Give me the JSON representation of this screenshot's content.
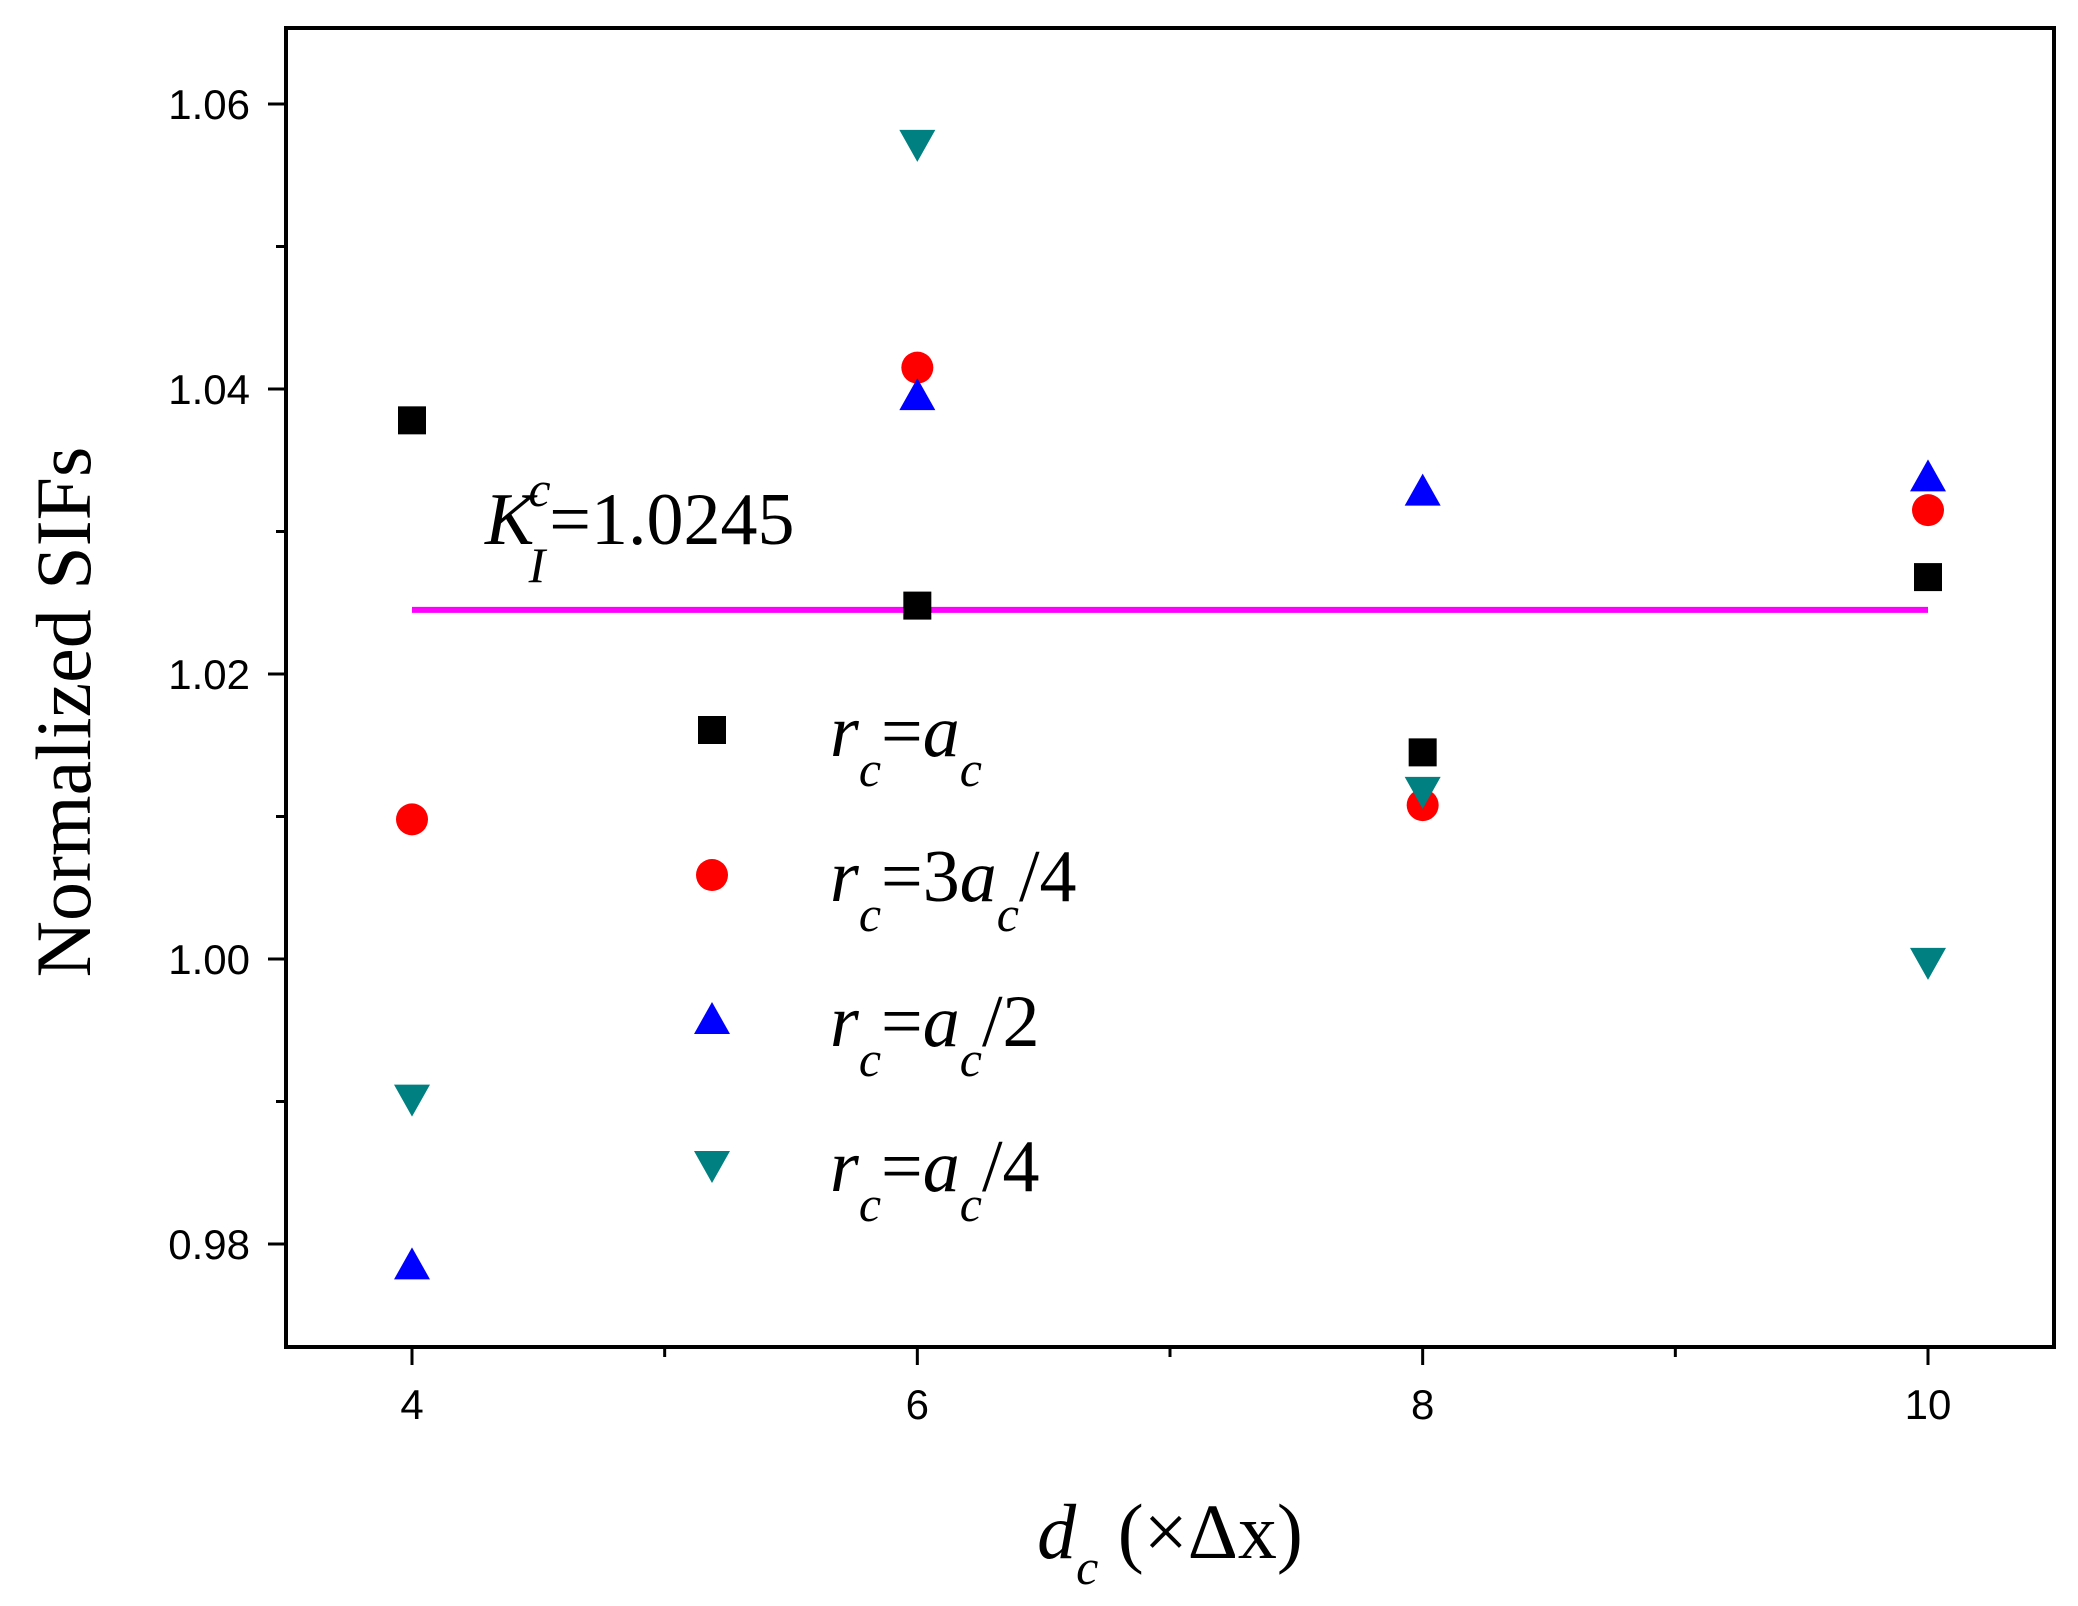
{
  "chart_data": {
    "type": "scatter",
    "xlabel": {
      "main": "d",
      "sub": "c",
      "rest": " (×Δx)"
    },
    "ylabel": "Normalized SIFs",
    "xlim": [
      3.5,
      11.5
    ],
    "ylim": [
      0.973,
      1.066
    ],
    "x_ticks": [
      4,
      6,
      8,
      10
    ],
    "x_tick_labels": [
      "4",
      "6",
      "8",
      "10"
    ],
    "x_minor_ticks": [
      5,
      7,
      9
    ],
    "y_ticks": [
      0.98,
      1.0,
      1.02,
      1.04,
      1.06
    ],
    "y_tick_labels": [
      "0.98",
      "1.00",
      "1.02",
      "1.04",
      "1.06"
    ],
    "y_minor_ticks": [
      0.99,
      1.01,
      1.03,
      1.05
    ],
    "grid": false,
    "legend_position": "center",
    "reference_line": {
      "label_main": "K",
      "label_sup": "c",
      "label_sub": "I",
      "label_value": "=1.0245",
      "y": 1.0245,
      "x_range": [
        4,
        10
      ],
      "color": "#ff00ff"
    },
    "series": [
      {
        "name": "r_c=a_c",
        "legend_parts": [
          [
            "r",
            "n"
          ],
          [
            "c",
            "s"
          ],
          [
            "=",
            "n"
          ],
          [
            "a",
            "n"
          ],
          [
            "c",
            "s"
          ]
        ],
        "marker": "square",
        "color": "#000000",
        "x": [
          4,
          6,
          8,
          10
        ],
        "y": [
          1.0378,
          1.0248,
          1.0145,
          1.0268
        ]
      },
      {
        "name": "r_c=3a_c/4",
        "legend_parts": [
          [
            "r",
            "n"
          ],
          [
            "c",
            "s"
          ],
          [
            "=3",
            "n"
          ],
          [
            "a",
            "n"
          ],
          [
            "c",
            "s"
          ],
          [
            "/4",
            "n"
          ]
        ],
        "marker": "circle",
        "color": "#ff0000",
        "x": [
          4,
          6,
          8,
          10
        ],
        "y": [
          1.0098,
          1.0415,
          1.0108,
          1.0315
        ]
      },
      {
        "name": "r_c=a_c/2",
        "legend_parts": [
          [
            "r",
            "n"
          ],
          [
            "c",
            "s"
          ],
          [
            "=",
            "n"
          ],
          [
            "a",
            "n"
          ],
          [
            "c",
            "s"
          ],
          [
            "/2",
            "n"
          ]
        ],
        "marker": "triangle-up",
        "color": "#0000ff",
        "x": [
          4,
          6,
          8,
          10
        ],
        "y": [
          0.9785,
          1.0395,
          1.0328,
          1.0338
        ]
      },
      {
        "name": "r_c=a_c/4",
        "legend_parts": [
          [
            "r",
            "n"
          ],
          [
            "c",
            "s"
          ],
          [
            "=",
            "n"
          ],
          [
            "a",
            "n"
          ],
          [
            "c",
            "s"
          ],
          [
            "/4",
            "n"
          ]
        ],
        "marker": "triangle-down",
        "color": "#008080",
        "x": [
          4,
          6,
          8,
          10
        ],
        "y": [
          0.9902,
          1.0572,
          1.0118,
          0.9998
        ]
      }
    ]
  }
}
